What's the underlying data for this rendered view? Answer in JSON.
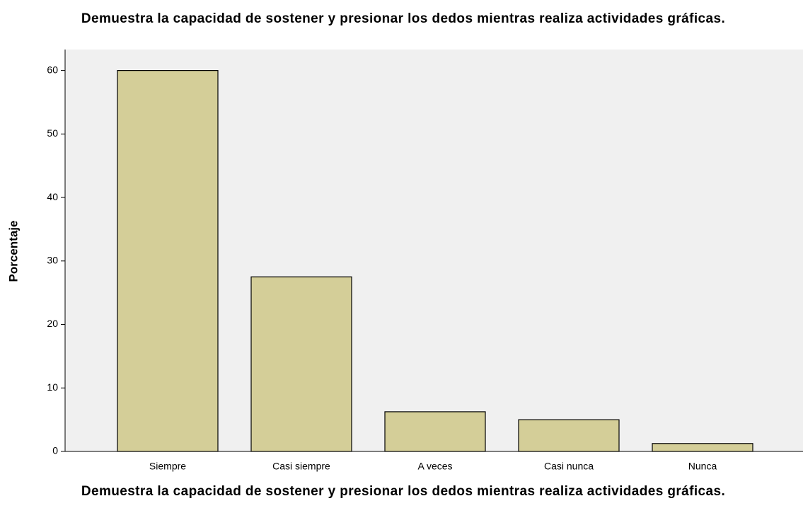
{
  "chart_data": {
    "type": "bar",
    "title": "Demuestra la capacidad de sostener y presionar los dedos mientras realiza actividades gráficas.",
    "x_label": "Demuestra la capacidad de sostener y presionar los dedos mientras realiza actividades gráficas.",
    "y_label": "Porcentaje",
    "categories": [
      "Siempre",
      "Casi siempre",
      "A veces",
      "Casi nunca",
      "Nunca"
    ],
    "values": [
      60,
      27.5,
      6.25,
      5,
      1.25
    ],
    "color": "#d4ce98",
    "ylim": [
      0,
      63.3
    ],
    "yticks": [
      0,
      10,
      20,
      30,
      40,
      50,
      60
    ],
    "grid": false
  }
}
